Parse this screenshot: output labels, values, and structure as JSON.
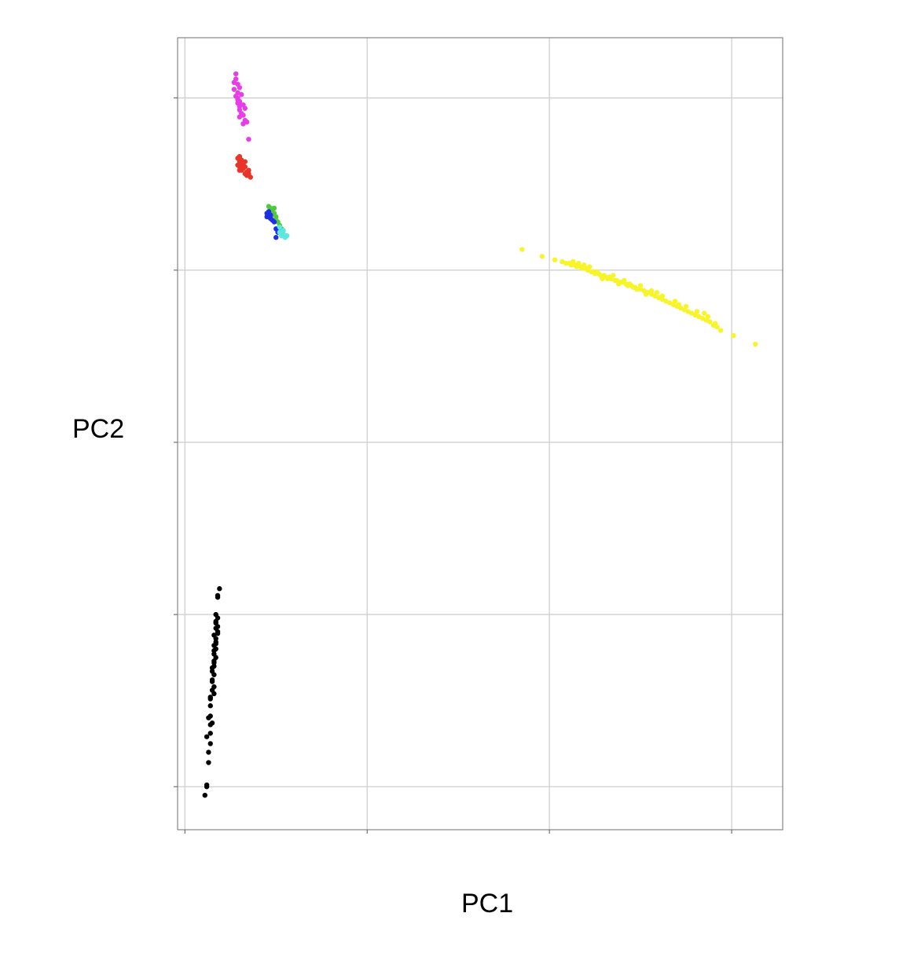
{
  "chart_data": {
    "type": "scatter",
    "title": "",
    "xlabel": "PC1",
    "ylabel": "PC2",
    "xlim": [
      -0.04,
      3.28
    ],
    "ylim": [
      -0.25,
      4.35
    ],
    "x_ticks": [
      0,
      1,
      2,
      3
    ],
    "y_ticks": [
      0,
      1,
      2,
      3,
      4
    ],
    "tick_labels_shown": false,
    "grid": true,
    "legend": "none",
    "series": [
      {
        "color": "#e83ce8",
        "points": [
          [
            0.28,
            4.01
          ],
          [
            0.29,
            4.03
          ],
          [
            0.27,
            4.05
          ],
          [
            0.3,
            3.98
          ],
          [
            0.29,
            4.0
          ],
          [
            0.31,
            3.96
          ],
          [
            0.3,
            3.93
          ],
          [
            0.32,
            3.9
          ],
          [
            0.33,
            3.87
          ],
          [
            0.34,
            3.86
          ],
          [
            0.32,
            3.85
          ],
          [
            0.29,
            4.08
          ],
          [
            0.28,
            4.11
          ],
          [
            0.27,
            4.09
          ],
          [
            0.28,
            4.14
          ],
          [
            0.3,
            3.95
          ],
          [
            0.31,
            4.02
          ],
          [
            0.29,
            3.99
          ],
          [
            0.3,
            4.06
          ],
          [
            0.31,
            3.91
          ],
          [
            0.33,
            3.94
          ],
          [
            0.32,
            3.96
          ],
          [
            0.29,
            3.97
          ],
          [
            0.3,
            3.89
          ],
          [
            0.35,
            3.76
          ]
        ]
      },
      {
        "color": "#e8352a",
        "points": [
          [
            0.29,
            3.65
          ],
          [
            0.3,
            3.63
          ],
          [
            0.31,
            3.62
          ],
          [
            0.3,
            3.6
          ],
          [
            0.32,
            3.61
          ],
          [
            0.33,
            3.6
          ],
          [
            0.31,
            3.58
          ],
          [
            0.34,
            3.57
          ],
          [
            0.32,
            3.59
          ],
          [
            0.35,
            3.56
          ],
          [
            0.3,
            3.66
          ],
          [
            0.31,
            3.64
          ],
          [
            0.33,
            3.63
          ],
          [
            0.29,
            3.61
          ],
          [
            0.36,
            3.54
          ],
          [
            0.34,
            3.55
          ],
          [
            0.32,
            3.62
          ],
          [
            0.3,
            3.58
          ],
          [
            0.35,
            3.58
          ],
          [
            0.33,
            3.56
          ],
          [
            0.31,
            3.6
          ]
        ]
      },
      {
        "color": "#52c93c",
        "points": [
          [
            0.46,
            3.37
          ],
          [
            0.47,
            3.36
          ],
          [
            0.48,
            3.35
          ],
          [
            0.49,
            3.33
          ],
          [
            0.5,
            3.31
          ],
          [
            0.48,
            3.32
          ],
          [
            0.51,
            3.28
          ],
          [
            0.52,
            3.26
          ],
          [
            0.47,
            3.34
          ],
          [
            0.5,
            3.29
          ],
          [
            0.53,
            3.24
          ],
          [
            0.49,
            3.36
          ],
          [
            0.51,
            3.23
          ]
        ]
      },
      {
        "color": "#1e2fe8",
        "points": [
          [
            0.45,
            3.33
          ],
          [
            0.46,
            3.31
          ],
          [
            0.47,
            3.3
          ],
          [
            0.48,
            3.29
          ],
          [
            0.46,
            3.34
          ],
          [
            0.47,
            3.32
          ],
          [
            0.49,
            3.28
          ],
          [
            0.45,
            3.31
          ],
          [
            0.5,
            3.24
          ],
          [
            0.51,
            3.22
          ],
          [
            0.5,
            3.19
          ]
        ]
      },
      {
        "color": "#5ae8e0",
        "points": [
          [
            0.52,
            3.22
          ],
          [
            0.53,
            3.2
          ],
          [
            0.54,
            3.21
          ],
          [
            0.55,
            3.19
          ],
          [
            0.54,
            3.23
          ],
          [
            0.56,
            3.2
          ],
          [
            0.52,
            3.25
          ]
        ]
      },
      {
        "color": "#f8f42a",
        "points": [
          [
            1.85,
            3.12
          ],
          [
            1.96,
            3.08
          ],
          [
            2.03,
            3.06
          ],
          [
            2.07,
            3.05
          ],
          [
            2.09,
            3.04
          ],
          [
            2.11,
            3.04
          ],
          [
            2.12,
            3.03
          ],
          [
            2.14,
            3.03
          ],
          [
            2.15,
            3.02
          ],
          [
            2.17,
            3.02
          ],
          [
            2.18,
            3.01
          ],
          [
            2.2,
            3.01
          ],
          [
            2.21,
            3.0
          ],
          [
            2.23,
            2.99
          ],
          [
            2.24,
            2.99
          ],
          [
            2.25,
            2.98
          ],
          [
            2.27,
            2.98
          ],
          [
            2.28,
            2.97
          ],
          [
            2.3,
            2.97
          ],
          [
            2.31,
            2.96
          ],
          [
            2.33,
            2.96
          ],
          [
            2.34,
            2.95
          ],
          [
            2.36,
            2.94
          ],
          [
            2.37,
            2.94
          ],
          [
            2.39,
            2.93
          ],
          [
            2.4,
            2.93
          ],
          [
            2.42,
            2.92
          ],
          [
            2.43,
            2.91
          ],
          [
            2.45,
            2.91
          ],
          [
            2.46,
            2.9
          ],
          [
            2.48,
            2.89
          ],
          [
            2.5,
            2.89
          ],
          [
            2.52,
            2.88
          ],
          [
            2.54,
            2.87
          ],
          [
            2.56,
            2.86
          ],
          [
            2.58,
            2.85
          ],
          [
            2.6,
            2.84
          ],
          [
            2.62,
            2.83
          ],
          [
            2.64,
            2.82
          ],
          [
            2.66,
            2.81
          ],
          [
            2.68,
            2.8
          ],
          [
            2.7,
            2.79
          ],
          [
            2.72,
            2.78
          ],
          [
            2.74,
            2.77
          ],
          [
            2.76,
            2.76
          ],
          [
            2.78,
            2.75
          ],
          [
            2.8,
            2.74
          ],
          [
            2.82,
            2.73
          ],
          [
            2.84,
            2.72
          ],
          [
            2.86,
            2.71
          ],
          [
            2.88,
            2.7
          ],
          [
            2.9,
            2.68
          ],
          [
            2.92,
            2.67
          ],
          [
            2.94,
            2.65
          ],
          [
            3.01,
            2.62
          ],
          [
            3.13,
            2.57
          ],
          [
            2.13,
            3.05
          ],
          [
            2.19,
            3.03
          ],
          [
            2.26,
            2.99
          ],
          [
            2.32,
            2.95
          ],
          [
            2.38,
            2.92
          ],
          [
            2.44,
            2.92
          ],
          [
            2.5,
            2.91
          ],
          [
            2.56,
            2.88
          ],
          [
            2.62,
            2.85
          ],
          [
            2.69,
            2.82
          ],
          [
            2.75,
            2.79
          ],
          [
            2.81,
            2.76
          ],
          [
            2.87,
            2.73
          ],
          [
            2.22,
            3.02
          ],
          [
            2.35,
            2.97
          ],
          [
            2.47,
            2.9
          ],
          [
            2.59,
            2.87
          ],
          [
            2.71,
            2.8
          ],
          [
            2.85,
            2.75
          ],
          [
            2.91,
            2.69
          ],
          [
            2.16,
            3.04
          ],
          [
            2.29,
            2.95
          ],
          [
            2.41,
            2.94
          ],
          [
            2.53,
            2.86
          ]
        ]
      },
      {
        "color": "#000000",
        "points": [
          [
            0.19,
            1.15
          ],
          [
            0.18,
            1.11
          ],
          [
            0.18,
            1.1
          ],
          [
            0.17,
            1.0
          ],
          [
            0.18,
            0.98
          ],
          [
            0.17,
            0.95
          ],
          [
            0.18,
            0.93
          ],
          [
            0.17,
            0.92
          ],
          [
            0.16,
            0.88
          ],
          [
            0.17,
            0.86
          ],
          [
            0.17,
            0.84
          ],
          [
            0.16,
            0.82
          ],
          [
            0.17,
            0.8
          ],
          [
            0.16,
            0.79
          ],
          [
            0.16,
            0.77
          ],
          [
            0.17,
            0.75
          ],
          [
            0.16,
            0.73
          ],
          [
            0.16,
            0.72
          ],
          [
            0.15,
            0.69
          ],
          [
            0.15,
            0.67
          ],
          [
            0.16,
            0.65
          ],
          [
            0.15,
            0.62
          ],
          [
            0.16,
            0.58
          ],
          [
            0.15,
            0.56
          ],
          [
            0.14,
            0.52
          ],
          [
            0.14,
            0.51
          ],
          [
            0.14,
            0.41
          ],
          [
            0.13,
            0.4
          ],
          [
            0.15,
            0.37
          ],
          [
            0.14,
            0.36
          ],
          [
            0.14,
            0.31
          ],
          [
            0.12,
            0.29
          ],
          [
            0.14,
            0.25
          ],
          [
            0.13,
            0.2
          ],
          [
            0.13,
            0.14
          ],
          [
            0.12,
            0.0
          ],
          [
            0.12,
            0.01
          ],
          [
            0.11,
            -0.05
          ],
          [
            0.17,
            0.96
          ],
          [
            0.18,
            0.9
          ],
          [
            0.17,
            0.83
          ],
          [
            0.16,
            0.7
          ],
          [
            0.15,
            0.61
          ],
          [
            0.16,
            0.54
          ],
          [
            0.14,
            0.47
          ],
          [
            0.18,
            0.89
          ]
        ]
      }
    ]
  }
}
